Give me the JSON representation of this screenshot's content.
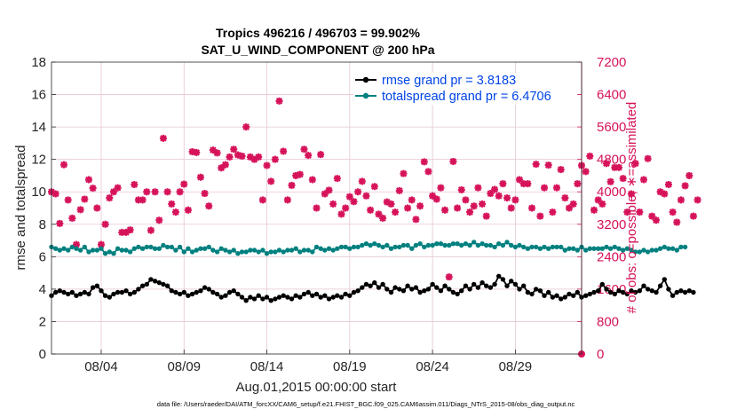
{
  "chart_data": {
    "type": "line",
    "title_line1": "Tropics 496216 / 496703 = 99.902%",
    "title_line2": "SAT_U_WIND_COMPONENT @ 200 hPa",
    "xlabel": "Aug.01,2015 00:00:00 start",
    "ylabel_left": "rmse and totalspread",
    "ylabel_right": "# of obs: o=possible; ∗=assimilated",
    "footer": "data file: /Users/raeder/DAI/ATM_forcXX/CAM6_setup/f.e21.FHIST_BGC.f09_025.CAM6assim.011/Diags_NTrS_2015-08/obs_diag_output.nc",
    "xlim": [
      1,
      33
    ],
    "ylim_left": [
      0,
      18
    ],
    "ylim_right": [
      0,
      7200
    ],
    "x_ticks": [
      4,
      9,
      14,
      19,
      24,
      29
    ],
    "x_tick_labels": [
      "08/04",
      "08/09",
      "08/14",
      "08/19",
      "08/24",
      "08/29"
    ],
    "y_ticks_left": [
      0,
      2,
      4,
      6,
      8,
      10,
      12,
      14,
      16,
      18
    ],
    "y_ticks_left_labels": [
      "0",
      "2",
      "4",
      "6",
      "8",
      "10",
      "12",
      "14",
      "16",
      "18"
    ],
    "y_ticks_right": [
      0,
      800,
      1600,
      2400,
      3200,
      4000,
      4800,
      5600,
      6400,
      7200
    ],
    "y_ticks_right_labels": [
      "0",
      "800",
      "1600",
      "2400",
      "3200",
      "4000",
      "4800",
      "5600",
      "6400",
      "7200"
    ],
    "legend_position": "top-right",
    "grid": true,
    "colors": {
      "rmse": "#000000",
      "totalspread": "#00807f",
      "obs": "#d6135a",
      "legend_text": "#0044e6"
    },
    "series": [
      {
        "name": "rmse grand pr = 3.8183",
        "axis": "left",
        "x_start": 1.0,
        "x_step": 0.25,
        "values": [
          3.6,
          3.8,
          3.9,
          3.8,
          3.7,
          3.8,
          3.6,
          3.7,
          3.8,
          3.7,
          4.1,
          4.2,
          3.9,
          3.6,
          3.5,
          3.7,
          3.8,
          3.8,
          3.9,
          3.7,
          3.8,
          4.0,
          4.2,
          4.3,
          4.6,
          4.5,
          4.4,
          4.3,
          4.2,
          3.9,
          3.8,
          3.7,
          3.8,
          3.6,
          3.7,
          3.8,
          3.9,
          4.1,
          4.0,
          3.8,
          3.7,
          3.5,
          3.6,
          3.8,
          3.9,
          3.7,
          3.5,
          3.3,
          3.5,
          3.4,
          3.6,
          3.4,
          3.5,
          3.3,
          3.4,
          3.5,
          3.6,
          3.5,
          3.4,
          3.6,
          3.5,
          3.7,
          3.8,
          3.6,
          3.7,
          3.5,
          3.6,
          3.4,
          3.5,
          3.6,
          3.5,
          3.7,
          3.6,
          3.8,
          3.9,
          4.1,
          4.3,
          4.2,
          4.4,
          4.1,
          4.3,
          4.0,
          3.8,
          4.1,
          4.0,
          3.9,
          4.2,
          4.0,
          4.1,
          3.8,
          3.9,
          4.0,
          4.3,
          4.1,
          3.9,
          4.2,
          4.0,
          3.8,
          3.7,
          3.9,
          4.2,
          4.0,
          4.3,
          4.1,
          4.4,
          4.2,
          4.1,
          4.3,
          4.8,
          4.6,
          4.2,
          4.5,
          4.3,
          4.0,
          4.2,
          3.8,
          3.7,
          4.0,
          3.9,
          3.6,
          3.8,
          3.5,
          3.6,
          3.4,
          3.5,
          3.7,
          3.6,
          3.8,
          3.5,
          3.6,
          3.7,
          3.8,
          3.9,
          4.3,
          4.0,
          3.8,
          3.7,
          3.9,
          3.8,
          3.7,
          3.9,
          3.8,
          3.9,
          4.2,
          4.0,
          3.9,
          3.8,
          4.2,
          4.6,
          4.0,
          3.6,
          3.8,
          3.9,
          3.8,
          3.9,
          3.8
        ]
      },
      {
        "name": "totalspread grand pr = 6.4706",
        "axis": "left",
        "x_start": 1.0,
        "x_step": 0.25,
        "values": [
          6.6,
          6.5,
          6.4,
          6.5,
          6.4,
          6.6,
          6.5,
          6.4,
          6.6,
          6.3,
          6.4,
          6.4,
          6.5,
          6.2,
          6.3,
          6.2,
          6.5,
          6.4,
          6.4,
          6.3,
          6.5,
          6.6,
          6.5,
          6.6,
          6.6,
          6.5,
          6.5,
          6.7,
          6.6,
          6.6,
          6.4,
          6.6,
          6.3,
          6.5,
          6.3,
          6.4,
          6.5,
          6.5,
          6.6,
          6.4,
          6.3,
          6.5,
          6.4,
          6.3,
          6.4,
          6.2,
          6.3,
          6.3,
          6.4,
          6.4,
          6.3,
          6.4,
          6.2,
          6.3,
          6.3,
          6.4,
          6.3,
          6.4,
          6.4,
          6.5,
          6.3,
          6.4,
          6.4,
          6.3,
          6.6,
          6.5,
          6.4,
          6.5,
          6.4,
          6.5,
          6.6,
          6.6,
          6.5,
          6.6,
          6.6,
          6.7,
          6.8,
          6.7,
          6.8,
          6.7,
          6.6,
          6.7,
          6.5,
          6.6,
          6.6,
          6.7,
          6.7,
          6.5,
          6.7,
          6.8,
          6.6,
          6.7,
          6.7,
          6.8,
          6.8,
          6.7,
          6.7,
          6.8,
          6.8,
          6.7,
          6.8,
          6.7,
          6.9,
          6.7,
          6.8,
          6.7,
          6.7,
          6.6,
          6.8,
          6.7,
          6.9,
          6.7,
          6.6,
          6.7,
          6.6,
          6.5,
          6.6,
          6.6,
          6.5,
          6.6,
          6.5,
          6.6,
          6.6,
          6.6,
          6.4,
          6.5,
          6.5,
          6.4,
          6.6,
          6.4,
          6.5,
          6.5,
          6.5,
          6.5,
          6.6,
          6.5,
          6.6,
          6.5,
          6.4,
          6.5,
          6.4,
          6.3,
          6.3,
          6.4,
          6.3,
          6.4,
          6.4,
          6.5,
          6.6,
          6.5,
          6.5,
          6.4,
          6.6,
          6.6
        ]
      },
      {
        "name": "obs assimilated",
        "axis": "right",
        "x_start": 1.0,
        "x_step": 0.25,
        "values": [
          4000,
          3950,
          3220,
          4670,
          3800,
          3350,
          2700,
          3560,
          3820,
          4300,
          4090,
          3600,
          2700,
          3200,
          3850,
          4000,
          4100,
          3000,
          3000,
          3060,
          4180,
          3800,
          3800,
          4000,
          3050,
          4000,
          3300,
          5320,
          4000,
          3700,
          3500,
          4000,
          4190,
          3550,
          4990,
          4970,
          4360,
          3960,
          3650,
          5030,
          4960,
          4590,
          4670,
          4860,
          5050,
          4910,
          4880,
          5600,
          4860,
          4800,
          4860,
          3800,
          4650,
          4260,
          4800,
          6240,
          5000,
          3800,
          4160,
          4400,
          4430,
          5050,
          4900,
          4300,
          3600,
          4920,
          3950,
          4040,
          3700,
          4330,
          3450,
          3600,
          3880,
          3760,
          4000,
          4260,
          3900,
          3550,
          4130,
          3450,
          3350,
          3750,
          3700,
          3500,
          4030,
          4450,
          3600,
          3800,
          3320,
          3650,
          4740,
          4500,
          3900,
          3820,
          4100,
          3550,
          1900,
          4750,
          3600,
          4050,
          3800,
          3500,
          3650,
          4100,
          3700,
          3400,
          3960,
          4060,
          3900,
          4200,
          3850,
          3600,
          3800,
          4300,
          4200,
          4200,
          3600,
          4680,
          3400,
          4100,
          4660,
          3500,
          4100,
          4550,
          3850,
          3600,
          3700,
          4200,
          4650,
          4500,
          4880,
          3550,
          3800,
          3700,
          4700,
          4250,
          4600,
          4600,
          4330,
          3500,
          3950,
          4700,
          3500,
          4300,
          4820,
          3400,
          3300,
          4000,
          3950,
          4180,
          3500,
          3250,
          3800,
          4150,
          4400,
          3400,
          3800
        ]
      }
    ],
    "extra_obs_marker": {
      "x": 33,
      "value": 0
    }
  }
}
